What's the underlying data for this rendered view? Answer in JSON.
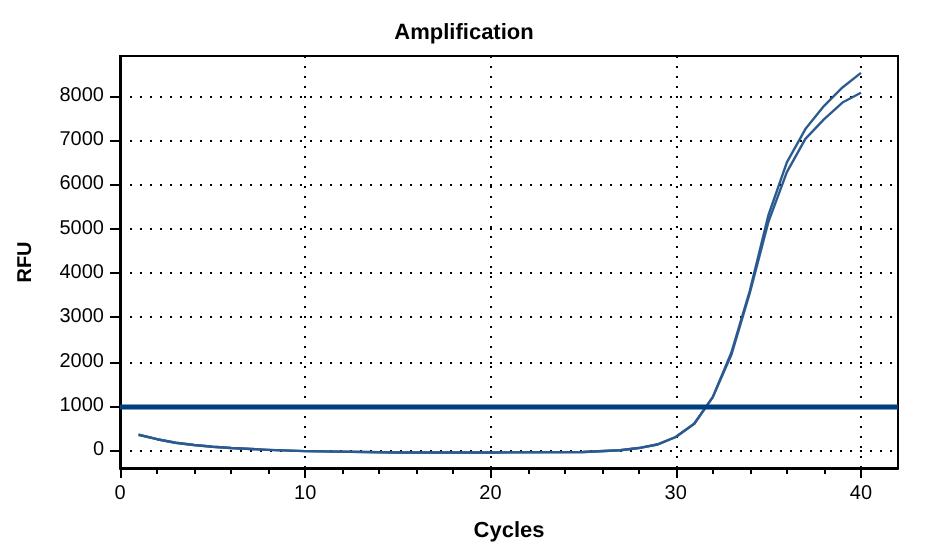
{
  "chart_data": {
    "type": "line",
    "title": "Amplification",
    "xlabel": "Cycles",
    "ylabel": "RFU",
    "x": [
      1,
      2,
      3,
      4,
      5,
      6,
      8,
      10,
      15,
      20,
      25,
      27,
      28,
      29,
      30,
      31,
      32,
      33,
      34,
      35,
      36,
      37,
      38,
      39,
      40
    ],
    "series": [
      {
        "color": "#2a5a8f",
        "values": [
          350,
          250,
          170,
          120,
          80,
          50,
          10,
          -20,
          -50,
          -50,
          -40,
          0,
          50,
          130,
          300,
          600,
          1200,
          2200,
          3600,
          5300,
          6500,
          7250,
          7770,
          8190,
          8520
        ]
      },
      {
        "color": "#2a5a8f",
        "values": [
          350,
          250,
          170,
          120,
          80,
          50,
          10,
          -20,
          -50,
          -50,
          -40,
          0,
          50,
          130,
          300,
          600,
          1200,
          2150,
          3550,
          5150,
          6280,
          7030,
          7470,
          7850,
          8070
        ]
      }
    ],
    "xlim": [
      0,
      42
    ],
    "xticks": [
      0,
      10,
      20,
      30,
      40
    ],
    "ylim": [
      -400,
      8900
    ],
    "yticks": [
      0,
      1000,
      2000,
      3000,
      4000,
      5000,
      6000,
      7000,
      8000
    ],
    "ref_lines": [
      {
        "axis": "y",
        "value": 1000,
        "color": "#003f7f"
      }
    ],
    "grid": true,
    "marker": "none",
    "line_style": "solid"
  }
}
